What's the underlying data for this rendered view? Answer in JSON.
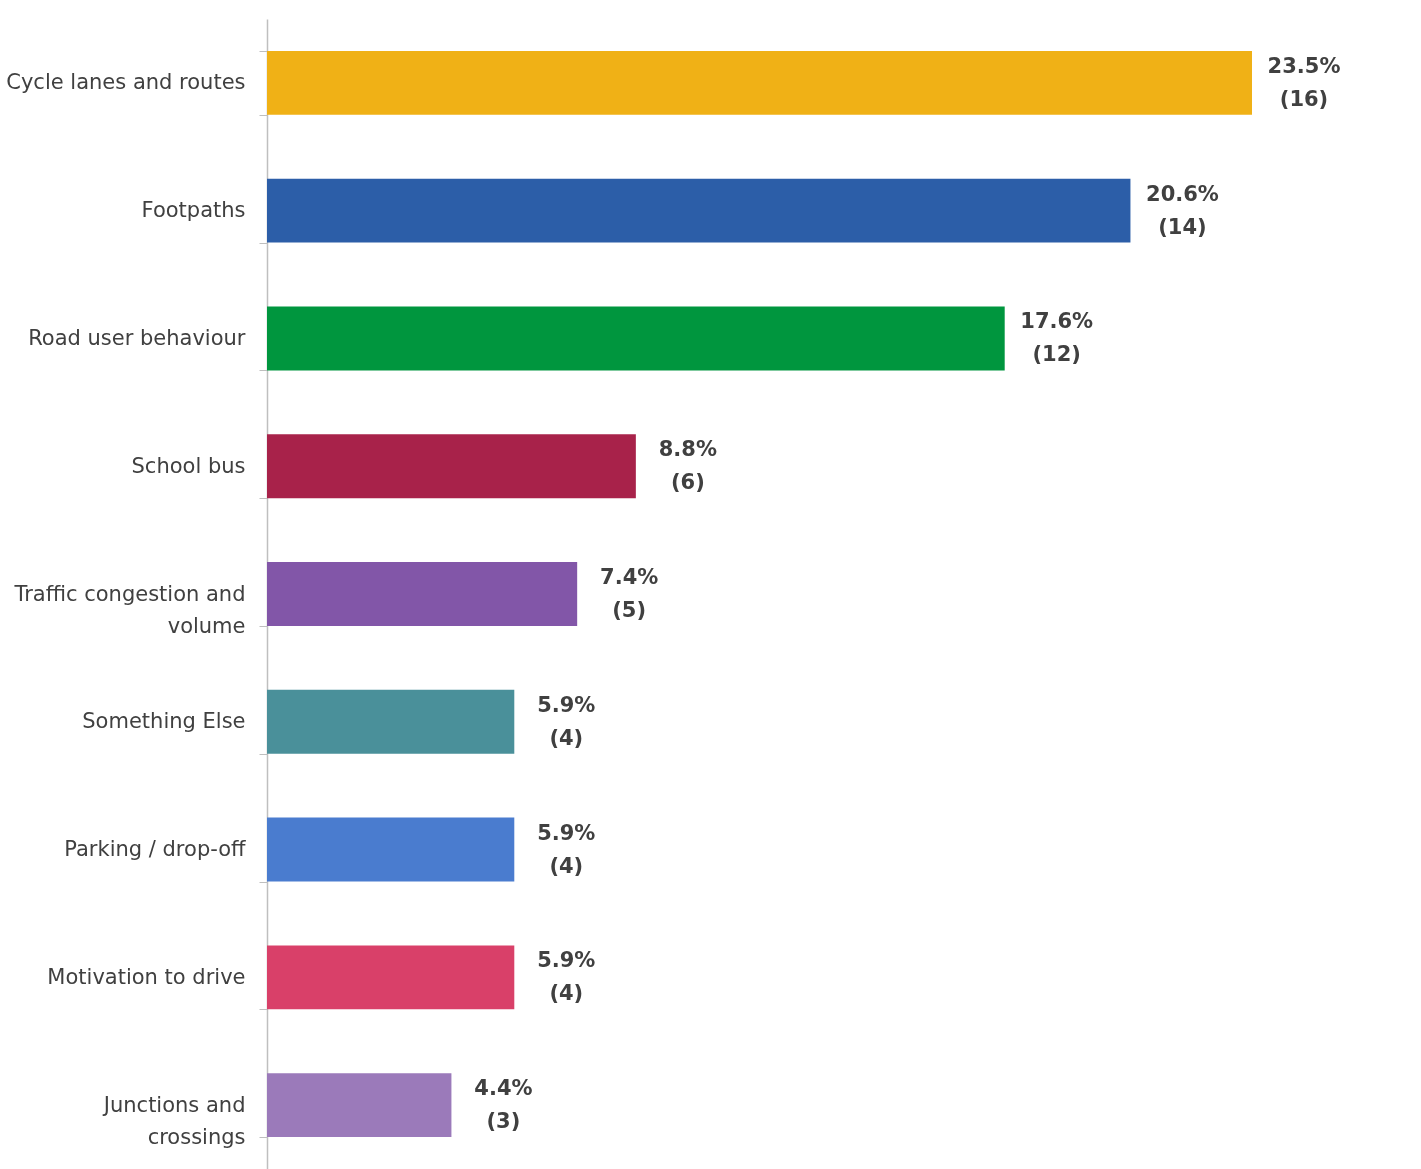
{
  "chart_data": {
    "type": "bar",
    "orientation": "horizontal",
    "categories": [
      "Cycle lanes and routes",
      "Footpaths",
      "Road user behaviour",
      "School bus",
      "Traffic congestion and volume",
      "Something Else",
      "Parking / drop-off",
      "Motivation to drive",
      "Junctions and crossings"
    ],
    "values": [
      23.5,
      20.6,
      17.6,
      8.8,
      7.4,
      5.9,
      5.9,
      5.9,
      4.4
    ],
    "colors": [
      "#f0b116",
      "#2c5ea8",
      "#00963e",
      "#a8224a",
      "#8256a8",
      "#4a909a",
      "#4a7ccf",
      "#d94069",
      "#9b7aba"
    ],
    "value_labels": [
      "23.5%\n(16)",
      "20.6%\n(14)",
      "17.6%\n(12)",
      "8.8%\n(6)",
      "7.4%\n(5)",
      "5.9%\n(4)",
      "5.9%\n(4)",
      "5.9%\n(4)",
      "4.4%\n(3)"
    ],
    "grid": false
  }
}
